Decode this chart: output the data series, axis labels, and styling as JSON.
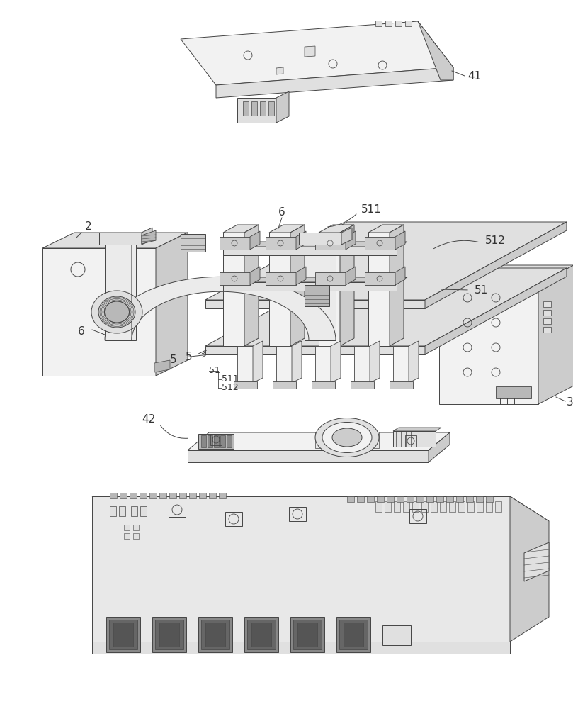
{
  "bg_color": "#ffffff",
  "lc": "#444444",
  "lw": 0.7,
  "figsize": [
    8.09,
    10.0
  ],
  "dpi": 100,
  "fill_light": "#f2f2f2",
  "fill_mid": "#e0e0e0",
  "fill_dark": "#cccccc",
  "fill_darker": "#b8b8b8"
}
